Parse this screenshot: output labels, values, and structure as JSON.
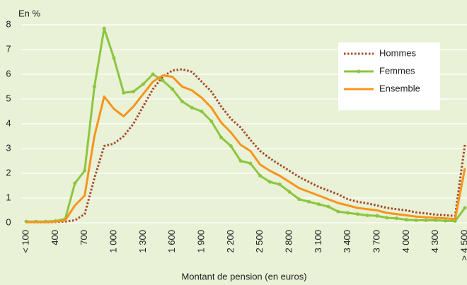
{
  "chart_data": {
    "type": "line",
    "y_axis_label": "En %",
    "x_axis_label": "Montant de pension (en euros)",
    "categories": [
      "< 100",
      null,
      null,
      "400",
      null,
      null,
      "700",
      null,
      null,
      "1 000",
      null,
      null,
      "1 300",
      null,
      null,
      "1 600",
      null,
      null,
      "1 900",
      null,
      null,
      "2 200",
      null,
      null,
      "2 500",
      null,
      null,
      "2 800",
      null,
      null,
      "3 100",
      null,
      null,
      "3 400",
      null,
      null,
      "3 700",
      null,
      null,
      "4 000",
      null,
      null,
      "4 300",
      null,
      null,
      "> 4 500"
    ],
    "ylim": [
      0,
      8
    ],
    "yticks": [
      0,
      1,
      2,
      3,
      4,
      5,
      6,
      7,
      8
    ],
    "grid": true,
    "legend": "top-right",
    "series": [
      {
        "name": "Hommes",
        "color": "#a3492a",
        "dash": "dotted",
        "marker": false,
        "values": [
          0.02,
          0.02,
          0.02,
          0.03,
          0.05,
          0.1,
          0.35,
          1.8,
          3.1,
          3.2,
          3.5,
          4.0,
          4.7,
          5.4,
          5.9,
          6.15,
          6.2,
          6.1,
          5.7,
          5.3,
          4.7,
          4.2,
          3.85,
          3.35,
          2.9,
          2.6,
          2.35,
          2.1,
          1.85,
          1.65,
          1.45,
          1.3,
          1.15,
          0.95,
          0.85,
          0.78,
          0.7,
          0.6,
          0.55,
          0.5,
          0.42,
          0.38,
          0.33,
          0.3,
          0.28,
          3.15
        ]
      },
      {
        "name": "Femmes",
        "color": "#8cc63f",
        "dash": "solid",
        "marker": true,
        "values": [
          0.05,
          0.05,
          0.05,
          0.07,
          0.15,
          1.6,
          2.1,
          5.5,
          7.85,
          6.65,
          5.25,
          5.3,
          5.6,
          6.0,
          5.75,
          5.4,
          4.9,
          4.65,
          4.5,
          4.1,
          3.45,
          3.1,
          2.5,
          2.4,
          1.9,
          1.65,
          1.55,
          1.25,
          0.95,
          0.85,
          0.75,
          0.65,
          0.45,
          0.4,
          0.35,
          0.3,
          0.28,
          0.2,
          0.18,
          0.12,
          0.1,
          0.1,
          0.1,
          0.08,
          0.07,
          0.6
        ]
      },
      {
        "name": "Ensemble",
        "color": "#f7941d",
        "dash": "solid",
        "marker": false,
        "values": [
          0.03,
          0.03,
          0.03,
          0.05,
          0.1,
          0.7,
          1.1,
          3.5,
          5.1,
          4.6,
          4.3,
          4.7,
          5.2,
          5.7,
          5.95,
          5.9,
          5.5,
          5.35,
          5.05,
          4.65,
          4.05,
          3.65,
          3.15,
          2.9,
          2.35,
          2.1,
          1.9,
          1.65,
          1.4,
          1.25,
          1.1,
          0.95,
          0.8,
          0.7,
          0.6,
          0.55,
          0.5,
          0.4,
          0.35,
          0.3,
          0.25,
          0.22,
          0.2,
          0.18,
          0.15,
          2.2
        ]
      }
    ]
  }
}
